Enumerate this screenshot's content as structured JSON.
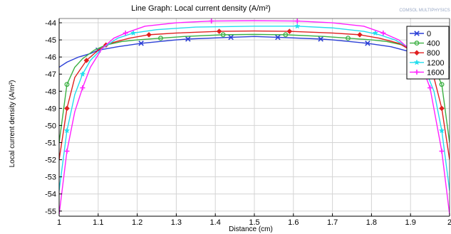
{
  "chart_data": {
    "type": "line",
    "title": "Line Graph: Local current density (A/m²)",
    "xlabel": "Distance (cm)",
    "ylabel": "Local current density (A/m²)",
    "xlim": [
      1.0,
      2.0
    ],
    "ylim": [
      -55.3,
      -43.75
    ],
    "xticks": [
      1,
      1.1,
      1.2,
      1.3,
      1.4,
      1.5,
      1.6,
      1.7,
      1.8,
      1.9,
      2
    ],
    "xtick_labels": [
      "1",
      "1.1",
      "1.2",
      "1.3",
      "1.4",
      "1.5",
      "1.6",
      "1.7",
      "1.8",
      "1.9",
      "2"
    ],
    "yticks": [
      -44,
      -45,
      -46,
      -47,
      -48,
      -49,
      -50,
      -51,
      -52,
      -53,
      -54,
      -55
    ],
    "ytick_labels": [
      "-44",
      "-45",
      "-46",
      "-47",
      "-48",
      "-49",
      "-50",
      "-51",
      "-52",
      "-53",
      "-54",
      "-55"
    ],
    "grid": true,
    "legend_position": "top-right",
    "watermark": "COMSOL MULTIPHYSICS",
    "series": [
      {
        "name": "0",
        "color": "#2b3fd6",
        "marker": "x",
        "x": [
          1.0,
          1.02,
          1.05,
          1.08,
          1.1,
          1.15,
          1.21,
          1.3,
          1.33,
          1.44,
          1.5,
          1.56,
          1.67,
          1.7,
          1.79,
          1.85,
          1.9,
          1.95,
          1.98,
          2.0
        ],
        "y": [
          -46.6,
          -46.3,
          -46.0,
          -45.8,
          -45.6,
          -45.4,
          -45.2,
          -45.0,
          -44.95,
          -44.85,
          -44.8,
          -44.85,
          -44.95,
          -45.0,
          -45.2,
          -45.4,
          -45.7,
          -46.0,
          -46.3,
          -46.6
        ],
        "markers_x": [
          1.1,
          1.21,
          1.33,
          1.44,
          1.56,
          1.67,
          1.79
        ],
        "markers_y": [
          -45.6,
          -45.2,
          -44.95,
          -44.85,
          -44.85,
          -44.95,
          -45.2
        ]
      },
      {
        "name": "400",
        "color": "#3cb043",
        "marker": "circle",
        "x": [
          1.0,
          1.02,
          1.04,
          1.06,
          1.09,
          1.12,
          1.16,
          1.2,
          1.26,
          1.32,
          1.42,
          1.5,
          1.58,
          1.68,
          1.74,
          1.8,
          1.84,
          1.88,
          1.91,
          1.94,
          1.96,
          1.98,
          2.0
        ],
        "y": [
          -51.0,
          -47.6,
          -46.6,
          -46.1,
          -45.6,
          -45.3,
          -45.1,
          -45.0,
          -44.9,
          -44.8,
          -44.7,
          -44.68,
          -44.7,
          -44.8,
          -44.9,
          -45.0,
          -45.1,
          -45.3,
          -45.6,
          -46.1,
          -46.6,
          -47.6,
          -51.0
        ],
        "markers_x": [
          1.02,
          1.26,
          1.42,
          1.58,
          1.74,
          1.98
        ],
        "markers_y": [
          -47.6,
          -44.9,
          -44.7,
          -44.7,
          -44.9,
          -47.6
        ]
      },
      {
        "name": "800",
        "color": "#e02020",
        "marker": "diamond",
        "x": [
          1.0,
          1.02,
          1.04,
          1.07,
          1.1,
          1.13,
          1.18,
          1.23,
          1.3,
          1.41,
          1.5,
          1.59,
          1.7,
          1.77,
          1.82,
          1.87,
          1.9,
          1.93,
          1.96,
          1.98,
          2.0
        ],
        "y": [
          -52.0,
          -49.0,
          -47.2,
          -46.2,
          -45.6,
          -45.2,
          -44.9,
          -44.7,
          -44.6,
          -44.5,
          -44.48,
          -44.5,
          -44.6,
          -44.7,
          -44.9,
          -45.2,
          -45.6,
          -46.2,
          -47.2,
          -49.0,
          -52.0
        ],
        "markers_x": [
          1.02,
          1.07,
          1.12,
          1.23,
          1.41,
          1.59,
          1.77,
          1.98
        ],
        "markers_y": [
          -49.0,
          -46.2,
          -45.3,
          -44.7,
          -44.5,
          -44.5,
          -44.7,
          -49.0
        ]
      },
      {
        "name": "1200",
        "color": "#22ddee",
        "marker": "star",
        "x": [
          1.0,
          1.02,
          1.04,
          1.06,
          1.08,
          1.11,
          1.15,
          1.19,
          1.25,
          1.35,
          1.5,
          1.61,
          1.7,
          1.78,
          1.82,
          1.86,
          1.9,
          1.93,
          1.96,
          1.98,
          2.0
        ],
        "y": [
          -53.8,
          -50.3,
          -48.2,
          -47.0,
          -46.2,
          -45.5,
          -44.9,
          -44.6,
          -44.4,
          -44.25,
          -44.2,
          -44.2,
          -44.3,
          -44.5,
          -44.7,
          -45.0,
          -45.5,
          -46.3,
          -48.0,
          -50.3,
          -53.8
        ],
        "markers_x": [
          1.02,
          1.06,
          1.19,
          1.61,
          1.81,
          1.98
        ],
        "markers_y": [
          -50.3,
          -47.0,
          -44.6,
          -44.2,
          -44.6,
          -50.3
        ]
      },
      {
        "name": "1600",
        "color": "#ff20ff",
        "marker": "plus",
        "x": [
          1.0,
          1.02,
          1.04,
          1.06,
          1.08,
          1.11,
          1.14,
          1.17,
          1.22,
          1.3,
          1.39,
          1.5,
          1.61,
          1.7,
          1.78,
          1.83,
          1.87,
          1.9,
          1.93,
          1.95,
          1.98,
          2.0
        ],
        "y": [
          -55.2,
          -51.5,
          -49.2,
          -47.8,
          -46.6,
          -45.5,
          -44.9,
          -44.6,
          -44.2,
          -44.0,
          -43.9,
          -43.88,
          -43.9,
          -44.0,
          -44.2,
          -44.6,
          -45.0,
          -45.6,
          -46.6,
          -47.8,
          -51.5,
          -55.2
        ],
        "markers_x": [
          1.02,
          1.06,
          1.17,
          1.39,
          1.61,
          1.83,
          1.95,
          1.98
        ],
        "markers_y": [
          -51.5,
          -47.8,
          -44.6,
          -43.9,
          -43.9,
          -44.6,
          -47.8,
          -51.5
        ]
      }
    ]
  }
}
